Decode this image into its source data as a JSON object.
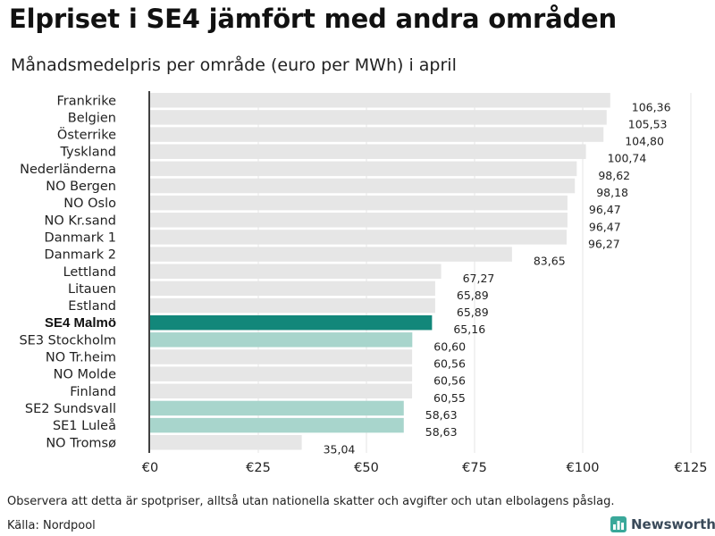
{
  "header": {
    "title": "Elpriset i SE4 jämfört med andra områden",
    "subtitle": "Månadsmedelpris per område (euro per MWh) i april"
  },
  "footer": {
    "note": "Observera att detta är spotpriser, alltså utan nationella skatter och avgifter och utan elbolagens påslag.",
    "source": "Källa: Nordpool",
    "logo_text": "Newsworthy"
  },
  "colors": {
    "default_bar": "#e6e6e6",
    "highlight_bar": "#12877a",
    "swedish_bar": "#a8d5cc",
    "gridline": "#e4e4e4"
  },
  "chart_data": {
    "type": "bar",
    "orientation": "horizontal",
    "title": "Elpriset i SE4 jämfört med andra områden",
    "subtitle": "Månadsmedelpris per område (euro per MWh) i april",
    "xlabel": "",
    "ylabel": "",
    "xlim": [
      0,
      125
    ],
    "ticks": [
      0,
      25,
      50,
      75,
      100,
      125
    ],
    "tick_labels": [
      "€0",
      "€25",
      "€50",
      "€75",
      "€100",
      "€125"
    ],
    "grid": true,
    "categories": [
      "Frankrike",
      "Belgien",
      "Österrike",
      "Tyskland",
      "Nederländerna",
      "NO Bergen",
      "NO Oslo",
      "NO Kr.sand",
      "Danmark 1",
      "Danmark 2",
      "Lettland",
      "Litauen",
      "Estland",
      "SE4 Malmö",
      "SE3 Stockholm",
      "NO Tr.heim",
      "NO Molde",
      "Finland",
      "SE2 Sundsvall",
      "SE1 Luleå",
      "NO Tromsø"
    ],
    "values": [
      106.36,
      105.53,
      104.8,
      100.74,
      98.62,
      98.18,
      96.47,
      96.47,
      96.27,
      83.65,
      67.27,
      65.89,
      65.89,
      65.16,
      60.6,
      60.56,
      60.56,
      60.55,
      58.63,
      58.63,
      35.04
    ],
    "value_labels": [
      "106,36",
      "105,53",
      "104,80",
      "100,74",
      "98,62",
      "98,18",
      "96,47",
      "96,47",
      "96,27",
      "83,65",
      "67,27",
      "65,89",
      "65,89",
      "65,16",
      "60,60",
      "60,56",
      "60,56",
      "60,55",
      "58,63",
      "58,63",
      "35,04"
    ],
    "highlight": [
      "SE4 Malmö"
    ],
    "secondary_highlight": [
      "SE3 Stockholm",
      "SE2 Sundsvall",
      "SE1 Luleå"
    ]
  }
}
